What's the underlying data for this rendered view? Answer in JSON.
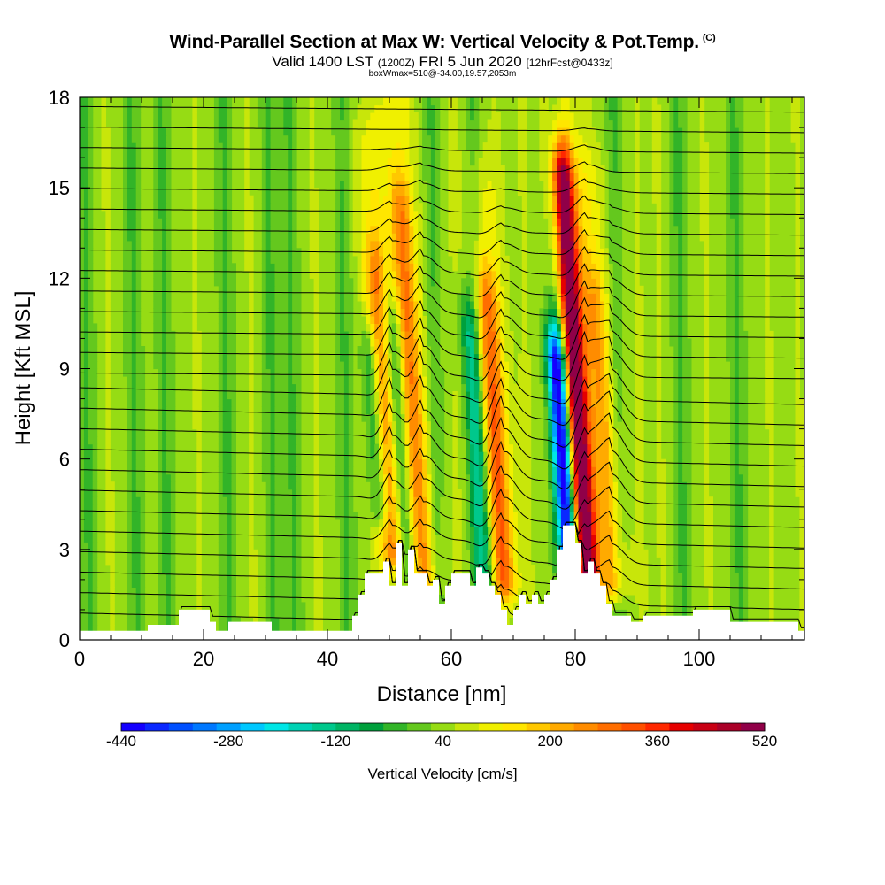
{
  "header": {
    "title": "Wind-Parallel Section at Max W: Vertical Velocity & Pot.Temp.",
    "title_mark": "(C)",
    "subtitle_main": "Valid 1400 LST",
    "subtitle_z": "(1200Z)",
    "subtitle_date": "FRI 5 Jun 2020",
    "subtitle_fcst": "[12hrFcst@0433z]",
    "subtitle2": "boxWmax=510@-34.00,19.57,2053m"
  },
  "chart_data": {
    "type": "heatmap",
    "title": "Wind-Parallel Section at Max W: Vertical Velocity & Pot.Temp.",
    "xlabel": "Distance [nm]",
    "ylabel": "Height [Kft MSL]",
    "xlim": [
      0,
      117
    ],
    "ylim": [
      0,
      18
    ],
    "x_ticks": [
      0,
      20,
      40,
      60,
      80,
      100
    ],
    "y_ticks": [
      0,
      3,
      6,
      9,
      12,
      15,
      18
    ],
    "colorbar": {
      "label": "Vertical Velocity [cm/s]",
      "min": -440,
      "max": 520,
      "ticks": [
        -440,
        -280,
        -120,
        40,
        200,
        360,
        520
      ],
      "colors": [
        "#1400ff",
        "#0a28ff",
        "#0050ff",
        "#0078ff",
        "#00a0ff",
        "#00c8ff",
        "#00e6e6",
        "#00d2b4",
        "#00c88c",
        "#00b464",
        "#00a03c",
        "#32b428",
        "#64c81e",
        "#96dc14",
        "#c8e60a",
        "#f0f000",
        "#ffe600",
        "#ffc800",
        "#ffaa00",
        "#ff8c00",
        "#ff6e00",
        "#ff5000",
        "#ff2800",
        "#e60000",
        "#c80014",
        "#aa0028",
        "#900048"
      ]
    },
    "background_value_cm_s": 40,
    "updraft_cores": [
      {
        "x": 50.5,
        "y_bottom": 3.0,
        "y_top": 12.0,
        "max_w": 200
      },
      {
        "x": 55.5,
        "y_bottom": 2.0,
        "y_top": 14.0,
        "max_w": 200
      },
      {
        "x": 68.5,
        "y_bottom": 2.0,
        "y_top": 11.0,
        "max_w": 240
      },
      {
        "x": 82.0,
        "y_bottom": 2.0,
        "y_top": 15.0,
        "max_w": 510
      },
      {
        "x": 86.0,
        "y_bottom": 2.0,
        "y_top": 11.0,
        "max_w": 160
      }
    ],
    "downdraft_cores": [
      {
        "x": 48.5,
        "y_bottom": 4.5,
        "y_top": 9.0,
        "min_w": -120
      },
      {
        "x": 53.0,
        "y_bottom": 2.5,
        "y_top": 10.0,
        "min_w": -120
      },
      {
        "x": 65.5,
        "y_bottom": 2.0,
        "y_top": 10.0,
        "min_w": -120
      },
      {
        "x": 79.0,
        "y_bottom": 3.0,
        "y_top": 9.0,
        "min_w": -440
      }
    ],
    "isentrope_count": 26,
    "terrain_nm_kft": [
      [
        0,
        0.3
      ],
      [
        10,
        0.3
      ],
      [
        11,
        0.5
      ],
      [
        15,
        0.5
      ],
      [
        16,
        1.0
      ],
      [
        20,
        1.0
      ],
      [
        21,
        0.6
      ],
      [
        22,
        0.3
      ],
      [
        24,
        0.6
      ],
      [
        30,
        0.6
      ],
      [
        31,
        0.3
      ],
      [
        43,
        0.3
      ],
      [
        44,
        0.8
      ],
      [
        45,
        1.5
      ],
      [
        46,
        2.2
      ],
      [
        48,
        2.2
      ],
      [
        49,
        2.6
      ],
      [
        50,
        1.8
      ],
      [
        51,
        3.2
      ],
      [
        52,
        1.8
      ],
      [
        53,
        3.0
      ],
      [
        54,
        2.2
      ],
      [
        56,
        1.8
      ],
      [
        57,
        2.0
      ],
      [
        58,
        1.2
      ],
      [
        59,
        1.8
      ],
      [
        60,
        2.2
      ],
      [
        62,
        2.2
      ],
      [
        63,
        1.8
      ],
      [
        64,
        2.4
      ],
      [
        65,
        2.2
      ],
      [
        66,
        1.8
      ],
      [
        67,
        1.5
      ],
      [
        68,
        1.0
      ],
      [
        69,
        0.5
      ],
      [
        70,
        1.0
      ],
      [
        71,
        1.5
      ],
      [
        72,
        1.2
      ],
      [
        73,
        1.5
      ],
      [
        74,
        1.2
      ],
      [
        75,
        1.5
      ],
      [
        76,
        2.0
      ],
      [
        77,
        3.0
      ],
      [
        78,
        3.8
      ],
      [
        79,
        3.8
      ],
      [
        80,
        3.2
      ],
      [
        81,
        2.2
      ],
      [
        82,
        2.6
      ],
      [
        83,
        2.2
      ],
      [
        84,
        1.8
      ],
      [
        85,
        1.2
      ],
      [
        86,
        0.8
      ],
      [
        89,
        0.6
      ],
      [
        90,
        0.6
      ],
      [
        91,
        0.8
      ],
      [
        97,
        0.8
      ],
      [
        99,
        1.0
      ],
      [
        104,
        1.0
      ],
      [
        105,
        0.6
      ],
      [
        115,
        0.6
      ],
      [
        116,
        0.3
      ],
      [
        117,
        0.3
      ]
    ]
  }
}
